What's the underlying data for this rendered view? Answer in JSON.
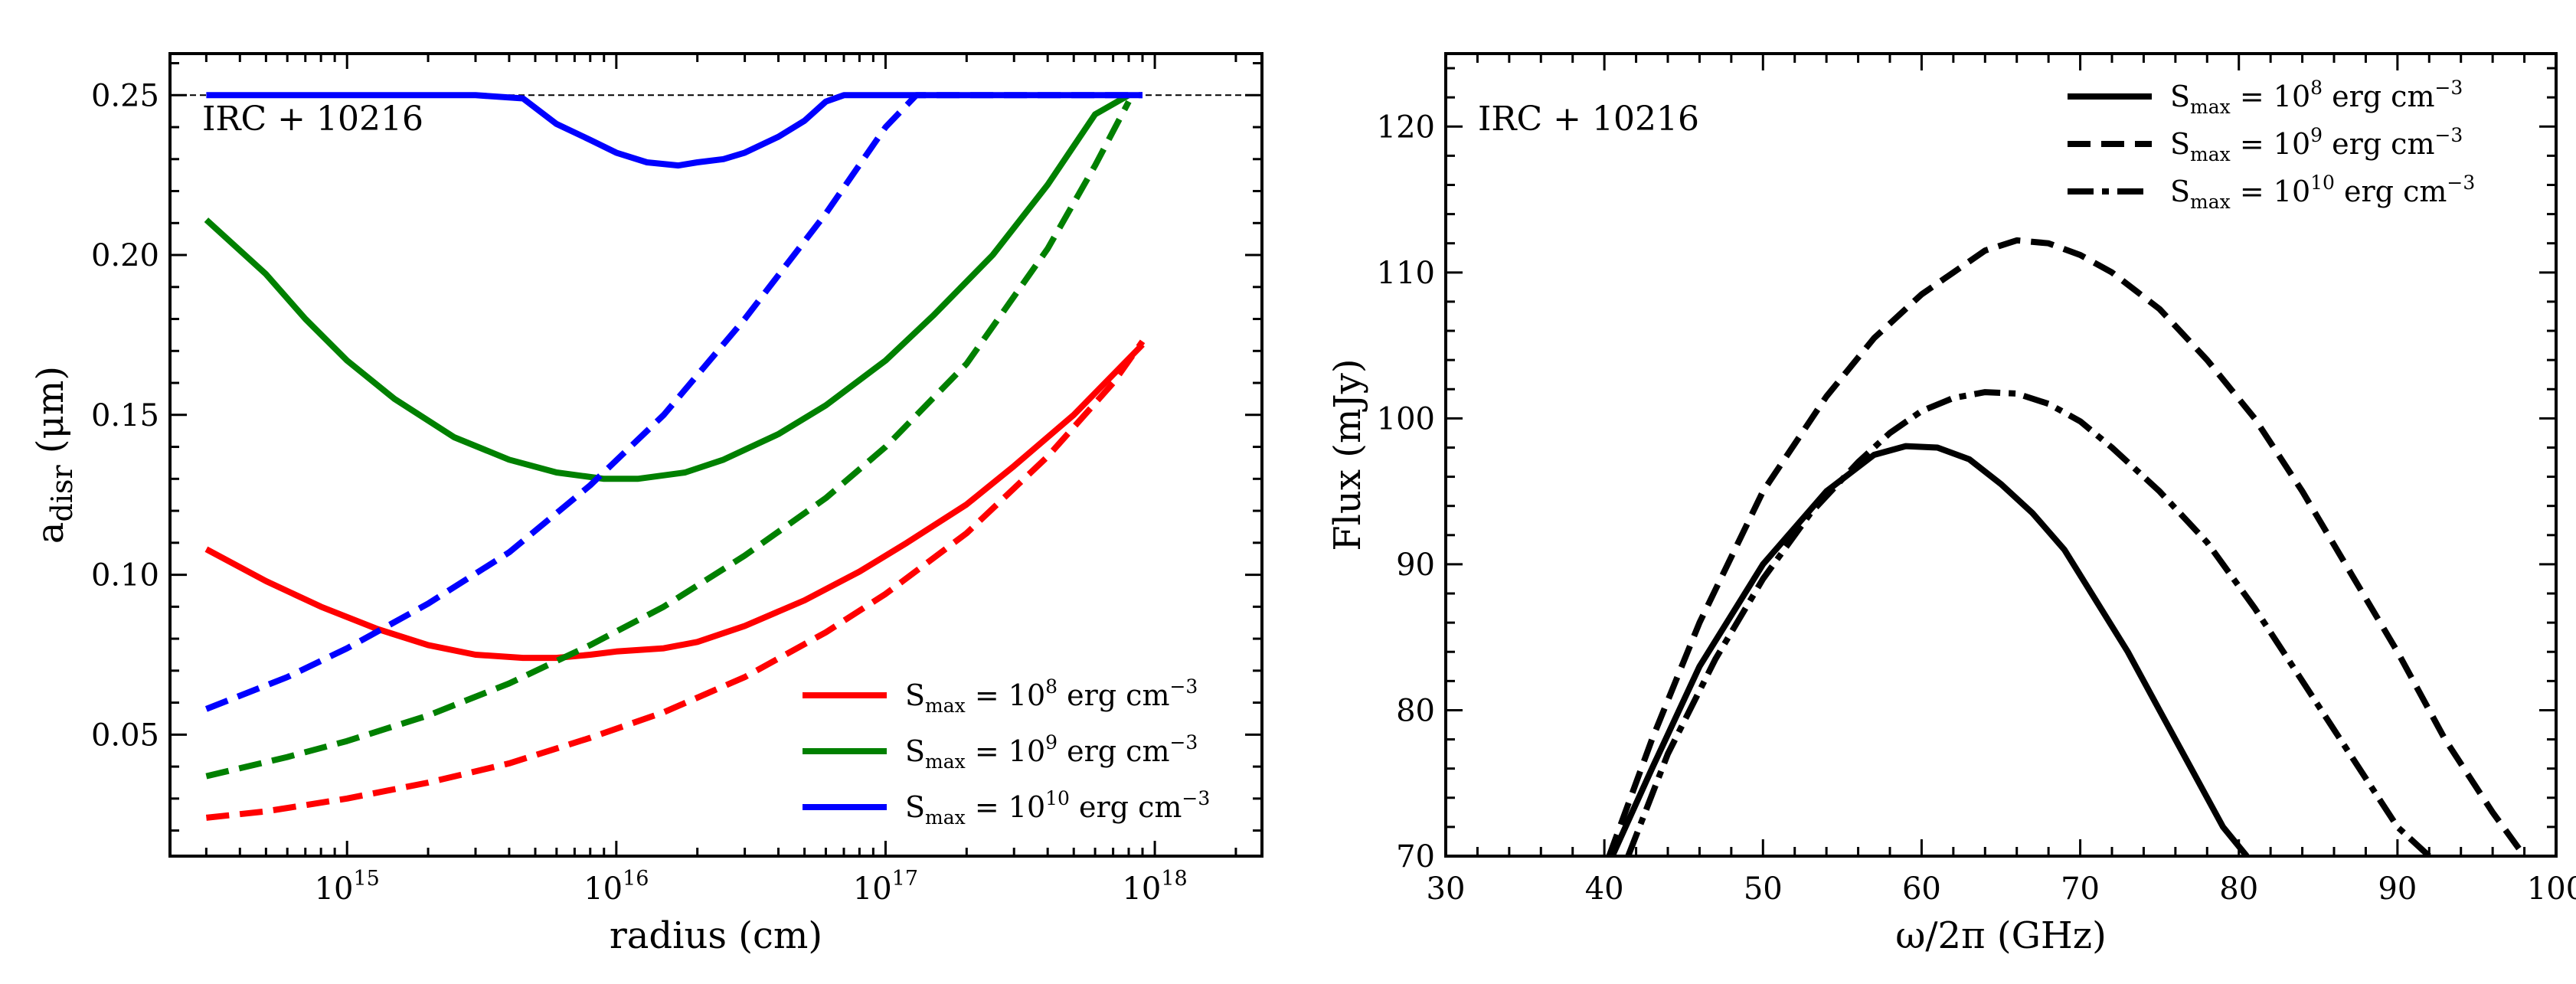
{
  "chart_data": [
    {
      "type": "line",
      "id": "left",
      "xscale": "log",
      "xlabel": "radius (cm)",
      "ylabel": "a_disr (μm)",
      "ylabel_main": "a",
      "ylabel_sub": "disr",
      "ylabel_rest": " (μm)",
      "xlim": [
        220000000000000.0,
        2.5e+18
      ],
      "ylim": [
        0.012,
        0.263
      ],
      "xticks": [
        {
          "value": 1000000000000000.0,
          "base": "10",
          "exp": "15"
        },
        {
          "value": 1e+16,
          "base": "10",
          "exp": "16"
        },
        {
          "value": 1e+17,
          "base": "10",
          "exp": "17"
        },
        {
          "value": 1e+18,
          "base": "10",
          "exp": "18"
        }
      ],
      "yticks": [
        {
          "value": 0.05,
          "label": "0.05"
        },
        {
          "value": 0.1,
          "label": "0.10"
        },
        {
          "value": 0.15,
          "label": "0.15"
        },
        {
          "value": 0.2,
          "label": "0.20"
        },
        {
          "value": 0.25,
          "label": "0.25"
        }
      ],
      "annotation": "IRC + 10216",
      "reference_line": {
        "y": 0.25,
        "color": "#000000",
        "style": "dashed"
      },
      "legend": [
        {
          "pre": "S",
          "sub": "max",
          "mid": " = 10",
          "sup": "8",
          "post": " erg cm",
          "sup2": "−3",
          "color": "#ff0000"
        },
        {
          "pre": "S",
          "sub": "max",
          "mid": " = 10",
          "sup": "9",
          "post": " erg cm",
          "sup2": "−3",
          "color": "#008000"
        },
        {
          "pre": "S",
          "sub": "max",
          "mid": " = 10",
          "sup": "10",
          "post": " erg cm",
          "sup2": "−3",
          "color": "#0000ff"
        }
      ],
      "series": [
        {
          "name": "red-solid",
          "color": "#ff0000",
          "style": "solid",
          "x": [
            300000000000000.0,
            500000000000000.0,
            800000000000000.0,
            1300000000000000.0,
            2000000000000000.0,
            3000000000000000.0,
            4500000000000000.0,
            6000000000000000.0,
            8000000000000000.0,
            1e+16,
            1.5e+16,
            2e+16,
            3e+16,
            5e+16,
            8e+16,
            1.2e+17,
            2e+17,
            3e+17,
            5e+17,
            9e+17
          ],
          "y": [
            0.108,
            0.098,
            0.09,
            0.083,
            0.078,
            0.075,
            0.074,
            0.074,
            0.075,
            0.076,
            0.077,
            0.079,
            0.084,
            0.092,
            0.101,
            0.11,
            0.122,
            0.134,
            0.15,
            0.172
          ]
        },
        {
          "name": "red-dashed",
          "color": "#ff0000",
          "style": "dashed",
          "x": [
            300000000000000.0,
            500000000000000.0,
            1000000000000000.0,
            2000000000000000.0,
            4000000000000000.0,
            8000000000000000.0,
            1.5e+16,
            3e+16,
            6e+16,
            1e+17,
            2e+17,
            4e+17,
            7e+17,
            9e+17
          ],
          "y": [
            0.024,
            0.026,
            0.03,
            0.035,
            0.041,
            0.049,
            0.057,
            0.068,
            0.082,
            0.094,
            0.113,
            0.137,
            0.16,
            0.173
          ]
        },
        {
          "name": "green-solid",
          "color": "#008000",
          "style": "solid",
          "x": [
            300000000000000.0,
            500000000000000.0,
            700000000000000.0,
            1000000000000000.0,
            1500000000000000.0,
            2500000000000000.0,
            4000000000000000.0,
            6000000000000000.0,
            9000000000000000.0,
            1.2e+16,
            1.8e+16,
            2.5e+16,
            4e+16,
            6e+16,
            1e+17,
            1.5e+17,
            2.5e+17,
            4e+17,
            6e+17,
            8e+17
          ],
          "y": [
            0.211,
            0.194,
            0.18,
            0.167,
            0.155,
            0.143,
            0.136,
            0.132,
            0.13,
            0.13,
            0.132,
            0.136,
            0.144,
            0.153,
            0.167,
            0.181,
            0.2,
            0.222,
            0.244,
            0.25
          ]
        },
        {
          "name": "green-dashed",
          "color": "#008000",
          "style": "dashed",
          "x": [
            300000000000000.0,
            600000000000000.0,
            1000000000000000.0,
            2000000000000000.0,
            4000000000000000.0,
            8000000000000000.0,
            1.5e+16,
            3e+16,
            6e+16,
            1e+17,
            2e+17,
            4e+17,
            6e+17,
            8e+17
          ],
          "y": [
            0.037,
            0.043,
            0.048,
            0.056,
            0.066,
            0.078,
            0.09,
            0.106,
            0.124,
            0.14,
            0.166,
            0.202,
            0.228,
            0.248
          ]
        },
        {
          "name": "blue-solid",
          "color": "#0000ff",
          "style": "solid",
          "x": [
            300000000000000.0,
            1000000000000000.0,
            3000000000000000.0,
            4500000000000000.0,
            6000000000000000.0,
            8000000000000000.0,
            1e+16,
            1.3e+16,
            1.7e+16,
            2e+16,
            2.5e+16,
            3e+16,
            4e+16,
            5e+16,
            6e+16,
            7e+16,
            1e+17,
            3e+17,
            9e+17
          ],
          "y": [
            0.25,
            0.25,
            0.25,
            0.249,
            0.241,
            0.236,
            0.232,
            0.229,
            0.228,
            0.229,
            0.23,
            0.232,
            0.237,
            0.242,
            0.248,
            0.25,
            0.25,
            0.25,
            0.25
          ]
        },
        {
          "name": "blue-dashed",
          "color": "#0000ff",
          "style": "dashed",
          "x": [
            300000000000000.0,
            600000000000000.0,
            1000000000000000.0,
            2000000000000000.0,
            4000000000000000.0,
            8000000000000000.0,
            1.5e+16,
            3e+16,
            6e+16,
            1e+17,
            1.3e+17,
            3e+17,
            9e+17
          ],
          "y": [
            0.058,
            0.068,
            0.077,
            0.091,
            0.107,
            0.128,
            0.15,
            0.18,
            0.213,
            0.24,
            0.25,
            0.25,
            0.25
          ]
        }
      ]
    },
    {
      "type": "line",
      "id": "right",
      "xscale": "linear",
      "xlabel": "ω/2π (GHz)",
      "ylabel": "Flux (mJy)",
      "xlim": [
        30,
        100
      ],
      "ylim": [
        70,
        125
      ],
      "xticks": [
        {
          "value": 30,
          "label": "30"
        },
        {
          "value": 40,
          "label": "40"
        },
        {
          "value": 50,
          "label": "50"
        },
        {
          "value": 60,
          "label": "60"
        },
        {
          "value": 70,
          "label": "70"
        },
        {
          "value": 80,
          "label": "80"
        },
        {
          "value": 90,
          "label": "90"
        },
        {
          "value": 100,
          "label": "100"
        }
      ],
      "yticks": [
        {
          "value": 70,
          "label": "70"
        },
        {
          "value": 80,
          "label": "80"
        },
        {
          "value": 90,
          "label": "90"
        },
        {
          "value": 100,
          "label": "100"
        },
        {
          "value": 110,
          "label": "110"
        },
        {
          "value": 120,
          "label": "120"
        }
      ],
      "annotation": "IRC + 10216",
      "legend": [
        {
          "pre": "S",
          "sub": "max",
          "mid": " = 10",
          "sup": "8",
          "post": " erg cm",
          "sup2": "−3",
          "style": "solid"
        },
        {
          "pre": "S",
          "sub": "max",
          "mid": " = 10",
          "sup": "9",
          "post": " erg cm",
          "sup2": "−3",
          "style": "dashed"
        },
        {
          "pre": "S",
          "sub": "max",
          "mid": " = 10",
          "sup": "10",
          "post": " erg cm",
          "sup2": "−3",
          "style": "dashdot"
        }
      ],
      "series": [
        {
          "name": "S=1e8",
          "color": "#000000",
          "style": "solid",
          "x": [
            40.5,
            43,
            46,
            50,
            54,
            57,
            59,
            61,
            63,
            65,
            67,
            69,
            71,
            73,
            75,
            77,
            79,
            80.5
          ],
          "y": [
            70,
            76,
            83,
            90,
            95,
            97.5,
            98.1,
            98,
            97.2,
            95.5,
            93.5,
            91,
            87.5,
            84,
            80,
            76,
            72,
            70
          ]
        },
        {
          "name": "S=1e9",
          "color": "#000000",
          "style": "dashed",
          "x": [
            40.3,
            43,
            46,
            50,
            54,
            57,
            60,
            62,
            64,
            66,
            68,
            70,
            72,
            75,
            78,
            81,
            84,
            87,
            90,
            93,
            96,
            98
          ],
          "y": [
            70,
            78,
            86,
            95,
            101.5,
            105.5,
            108.5,
            110,
            111.5,
            112.2,
            112,
            111.2,
            110,
            107.5,
            104,
            100,
            95,
            89.5,
            84,
            78,
            73,
            70
          ]
        },
        {
          "name": "S=1e10",
          "color": "#000000",
          "style": "dashdot",
          "x": [
            41.5,
            44,
            47,
            50,
            53,
            56,
            58,
            60,
            62,
            64,
            66,
            68,
            70,
            72,
            75,
            78,
            81,
            84,
            87,
            90,
            92
          ],
          "y": [
            70,
            77,
            83.5,
            89,
            93.5,
            97,
            99,
            100.5,
            101.4,
            101.8,
            101.7,
            101,
            99.8,
            98,
            95,
            91.5,
            87,
            82,
            77,
            72,
            70
          ]
        }
      ]
    }
  ]
}
